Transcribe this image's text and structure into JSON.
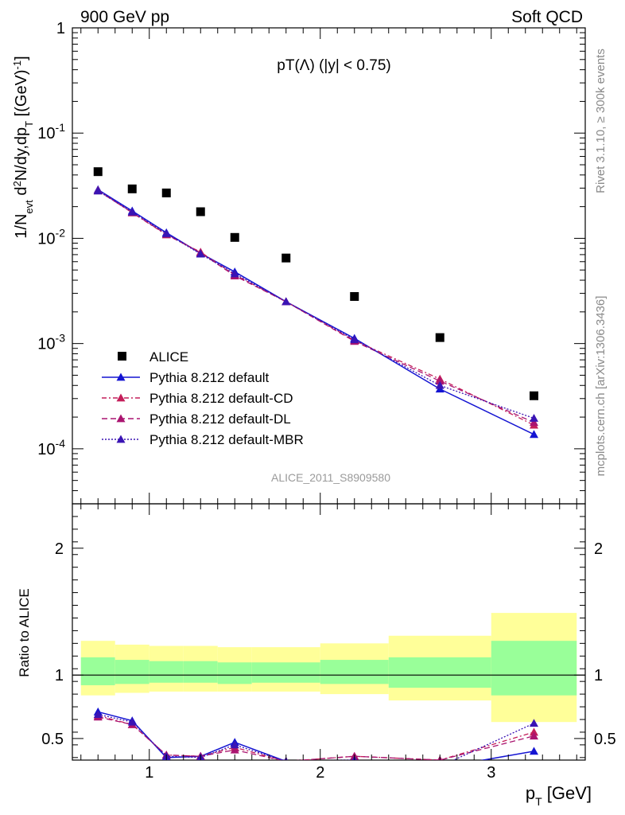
{
  "header": {
    "left": "900 GeV pp",
    "right": "Soft QCD"
  },
  "side_labels": {
    "rivet": "Rivet 3.1.10, ≥ 300k events",
    "mcplots": "mcplots.cern.ch [arXiv:1306.3436]"
  },
  "chart_data": {
    "type": "scatter",
    "title": "pT(Λ) (|y| < 0.75)",
    "analysis_id": "ALICE_2011_S8909580",
    "xlabel": "p_T [GeV]",
    "ylabel": "1/N_evt d²N/dy,dp_T [(GeV)^-1]",
    "ratio_ylabel": "Ratio to ALICE",
    "xlim": [
      0.55,
      3.55
    ],
    "ylim_main": [
      3e-05,
      1.0
    ],
    "ylim_ratio": [
      0.33,
      2.35
    ],
    "yscale_main": "log",
    "x_ticks": [
      1,
      2,
      3
    ],
    "ratio_y_ticks": [
      0.5,
      1,
      2
    ],
    "main_y_tick_labels": [
      "1",
      "10^-1",
      "10^-2",
      "10^-3",
      "10^-4"
    ],
    "legend_position": "bottom-left",
    "bins": [
      {
        "lo": 0.6,
        "hi": 0.8,
        "x": 0.7
      },
      {
        "lo": 0.8,
        "hi": 1.0,
        "x": 0.9
      },
      {
        "lo": 1.0,
        "hi": 1.2,
        "x": 1.1
      },
      {
        "lo": 1.2,
        "hi": 1.4,
        "x": 1.3
      },
      {
        "lo": 1.4,
        "hi": 1.6,
        "x": 1.5
      },
      {
        "lo": 1.6,
        "hi": 2.0,
        "x": 1.8
      },
      {
        "lo": 2.0,
        "hi": 2.4,
        "x": 2.2
      },
      {
        "lo": 2.4,
        "hi": 3.0,
        "x": 2.7
      },
      {
        "lo": 3.0,
        "hi": 3.5,
        "x": 3.25
      }
    ],
    "data": {
      "name": "ALICE",
      "values": [
        0.043,
        0.0295,
        0.027,
        0.0179,
        0.0102,
        0.0065,
        0.0028,
        0.00114,
        0.000319
      ],
      "band_inner": [
        [
          0.92,
          1.14
        ],
        [
          0.93,
          1.12
        ],
        [
          0.94,
          1.11
        ],
        [
          0.94,
          1.11
        ],
        [
          0.93,
          1.1
        ],
        [
          0.94,
          1.1
        ],
        [
          0.93,
          1.12
        ],
        [
          0.9,
          1.14
        ],
        [
          0.84,
          1.27
        ]
      ],
      "band_outer": [
        [
          0.84,
          1.27
        ],
        [
          0.86,
          1.24
        ],
        [
          0.87,
          1.23
        ],
        [
          0.87,
          1.23
        ],
        [
          0.87,
          1.22
        ],
        [
          0.87,
          1.22
        ],
        [
          0.85,
          1.25
        ],
        [
          0.8,
          1.31
        ],
        [
          0.63,
          1.49
        ]
      ]
    },
    "series": [
      {
        "name": "Pythia 8.212 default",
        "color": "#1414d2",
        "dash": "",
        "values": [
          0.029,
          0.0182,
          0.0113,
          0.0072,
          0.0048,
          0.0025,
          0.00112,
          0.00037,
          0.000137
        ]
      },
      {
        "name": "Pythia 8.212 default-CD",
        "color": "#c41e5a",
        "dash": "6,3,2,3",
        "values": [
          0.0285,
          0.0175,
          0.0108,
          0.0074,
          0.0045,
          0.0025,
          0.00107,
          0.00046,
          0.000168
        ]
      },
      {
        "name": "Pythia 8.212 default-DL",
        "color": "#aa1470",
        "dash": "7,4",
        "values": [
          0.0283,
          0.0176,
          0.0109,
          0.0073,
          0.0044,
          0.0025,
          0.00105,
          0.00044,
          0.000178
        ]
      },
      {
        "name": "Pythia 8.212 default-MBR",
        "color": "#3a14b4",
        "dash": "2,2",
        "values": [
          0.0282,
          0.0178,
          0.0111,
          0.0071,
          0.0046,
          0.0025,
          0.00109,
          0.0004,
          0.000195
        ]
      }
    ],
    "ratios": [
      [
        0.71,
        0.64,
        0.35,
        0.36,
        0.47,
        0.32,
        0.28,
        0.27,
        0.4
      ],
      [
        0.68,
        0.61,
        0.37,
        0.36,
        0.43,
        0.32,
        0.36,
        0.33,
        0.55
      ],
      [
        0.67,
        0.61,
        0.37,
        0.36,
        0.41,
        0.32,
        0.36,
        0.33,
        0.52
      ],
      [
        0.69,
        0.63,
        0.36,
        0.35,
        0.45,
        0.32,
        0.33,
        0.28,
        0.62
      ]
    ]
  }
}
